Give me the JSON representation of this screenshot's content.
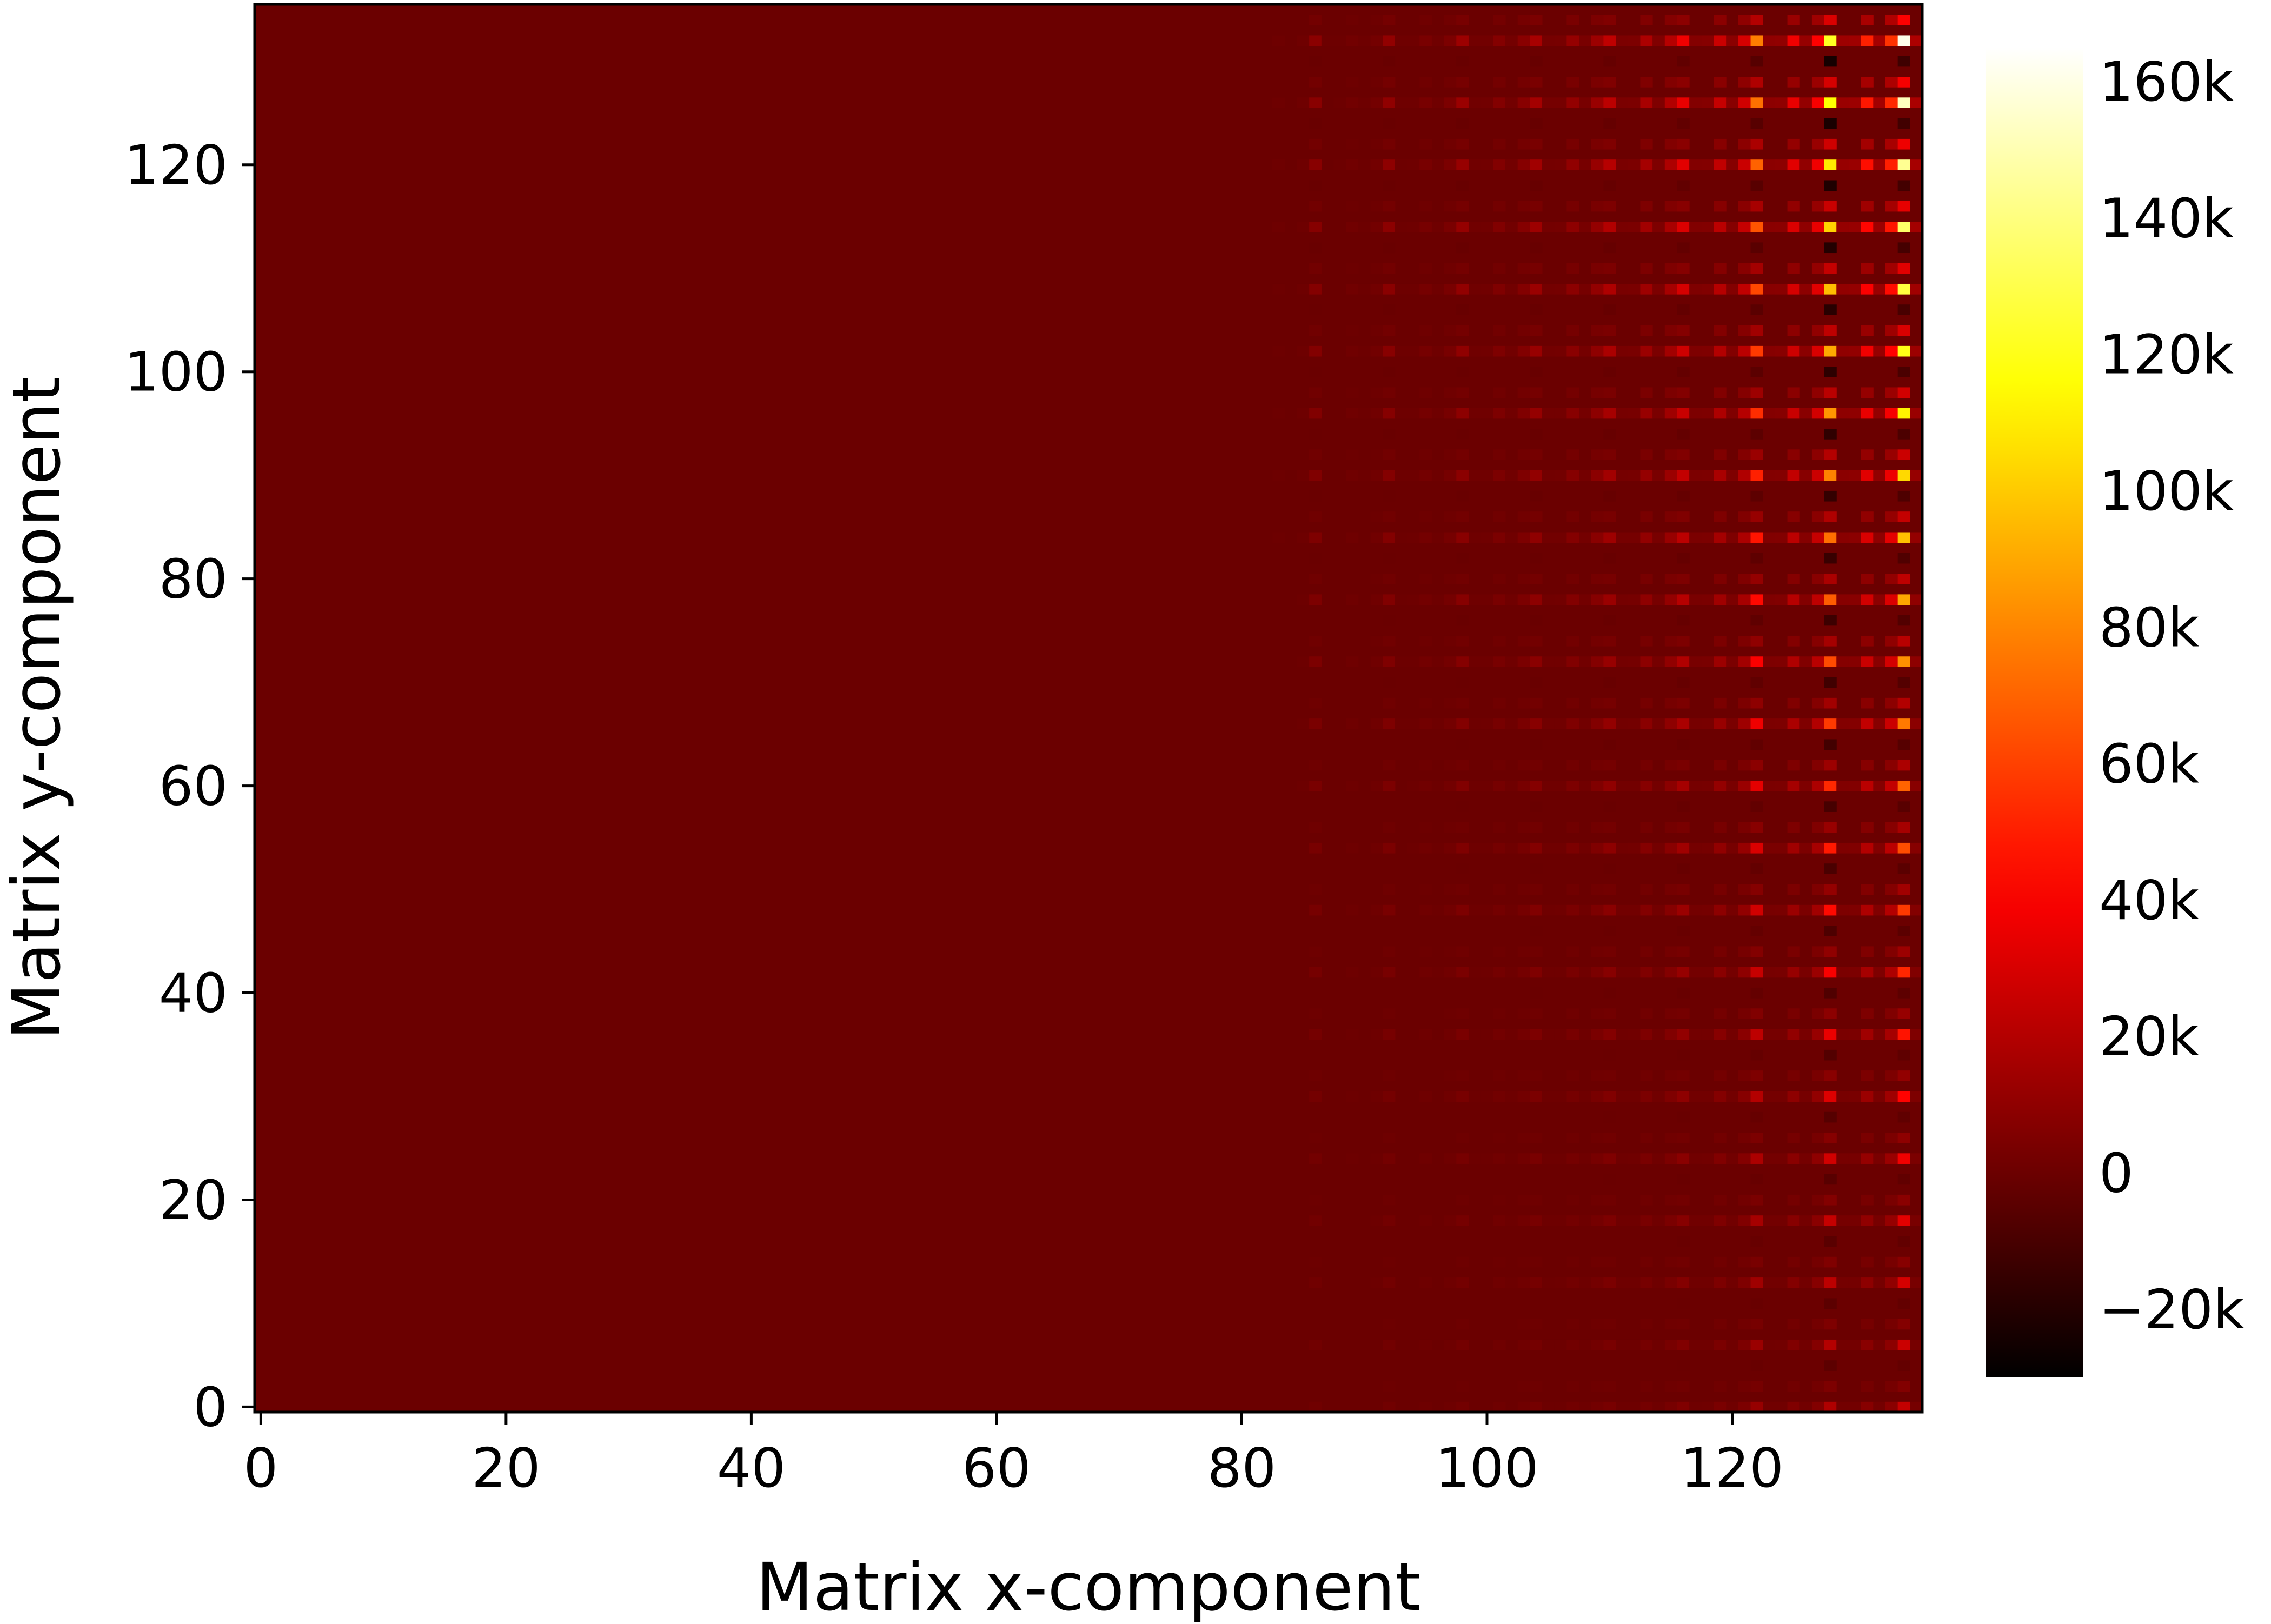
{
  "chart_data": {
    "type": "heatmap",
    "title": "",
    "xlabel": "Matrix x-component",
    "ylabel": "Matrix y-component",
    "xlim": [
      -0.5,
      135.5
    ],
    "ylim": [
      -0.5,
      135.5
    ],
    "grid": false,
    "x_ticks": [
      0,
      20,
      40,
      60,
      80,
      100,
      120
    ],
    "y_ticks": [
      0,
      20,
      40,
      60,
      80,
      100,
      120
    ],
    "x_tick_labels": [
      "0",
      "20",
      "40",
      "60",
      "80",
      "100",
      "120"
    ],
    "y_tick_labels": [
      "0",
      "20",
      "40",
      "60",
      "80",
      "100",
      "120"
    ],
    "colormap": "hot",
    "color_range": [
      -30000,
      165000
    ],
    "background_value": 0,
    "colorbar": {
      "ticks": [
        -20000,
        0,
        20000,
        40000,
        60000,
        80000,
        100000,
        120000,
        140000,
        160000
      ],
      "labels": [
        "−20k",
        "0",
        "20k",
        "40k",
        "60k",
        "80k",
        "100k",
        "120k",
        "140k",
        "160k"
      ],
      "placement": "right"
    },
    "grid_size": [
      136,
      136
    ],
    "description_of_pattern": "Values are near zero for most of the matrix; a periodic checkerboard-like structure appears for x > 80, with strongest positive values at x = 128 and x = 134 growing with y, and strongly negative values alternating at x = 128.",
    "highlight_columns": [
      {
        "x": 86,
        "peak": 9000
      },
      {
        "x": 92,
        "peak": 11000
      },
      {
        "x": 98,
        "peak": 14000
      },
      {
        "x": 104,
        "peak": 17000
      },
      {
        "x": 110,
        "peak": 24000
      },
      {
        "x": 116,
        "peak": 38000
      },
      {
        "x": 122,
        "peak": 80000
      },
      {
        "x": 128,
        "peak": 125000,
        "negative_peak": -25000
      },
      {
        "x": 134,
        "peak": 165000
      }
    ],
    "row_period": 6
  }
}
